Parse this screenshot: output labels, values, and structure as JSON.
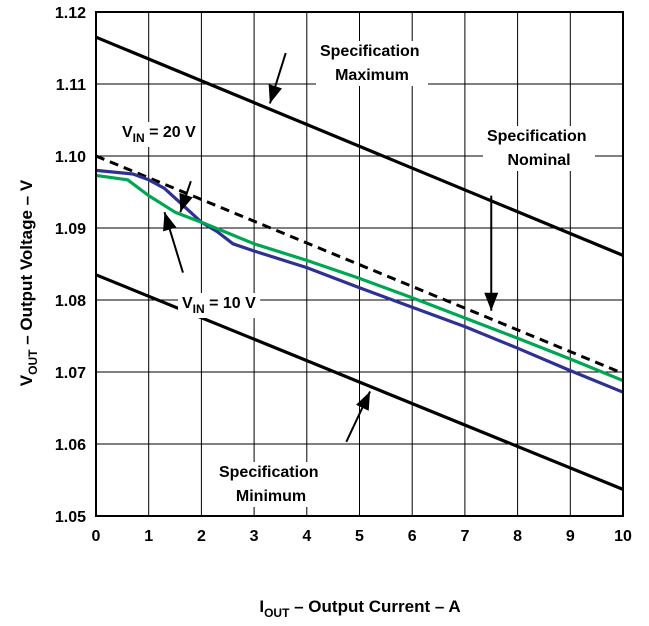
{
  "chart_data": {
    "type": "line",
    "xlabel": {
      "main": "I",
      "sub": "OUT",
      "rest": " – Output Current – A"
    },
    "ylabel": {
      "main": "V",
      "sub": "OUT",
      "rest": " – Output Voltage – V"
    },
    "xlim": [
      0,
      10
    ],
    "ylim": [
      1.05,
      1.12
    ],
    "xticks": [
      "0",
      "1",
      "2",
      "3",
      "4",
      "5",
      "6",
      "7",
      "8",
      "9",
      "10"
    ],
    "yticks": [
      "1.05",
      "1.06",
      "1.07",
      "1.08",
      "1.09",
      "1.10",
      "1.11",
      "1.12"
    ],
    "grid": true,
    "colors": {
      "spec": "#000000",
      "vin20": "#2e3192",
      "vin10": "#00a651"
    },
    "series": [
      {
        "key": "spec_max",
        "style": "solid",
        "color": "#000000",
        "x": [
          0,
          10
        ],
        "y": [
          1.1165,
          1.0862
        ]
      },
      {
        "key": "spec_nom",
        "style": "dashed",
        "color": "#000000",
        "x": [
          0,
          10
        ],
        "y": [
          1.1,
          1.0698
        ]
      },
      {
        "key": "spec_min",
        "style": "solid",
        "color": "#000000",
        "x": [
          0,
          10
        ],
        "y": [
          1.0835,
          1.0537
        ]
      },
      {
        "key": "vin20",
        "style": "solid",
        "color": "#2e3192",
        "x": [
          0,
          0.7,
          1.0,
          1.3,
          1.6,
          2.0,
          2.3,
          2.6,
          3.0,
          4.0,
          5.0,
          6.0,
          7.0,
          8.0,
          9.0,
          10.0
        ],
        "y": [
          1.098,
          1.0975,
          1.0967,
          1.0955,
          1.0935,
          1.0908,
          1.0895,
          1.0878,
          1.0868,
          1.0845,
          1.0817,
          1.079,
          1.0763,
          1.0733,
          1.0702,
          1.0672
        ]
      },
      {
        "key": "vin10",
        "style": "solid",
        "color": "#00a651",
        "x": [
          0,
          0.6,
          1.0,
          1.5,
          2.0,
          2.5,
          3.0,
          4.0,
          5.0,
          6.0,
          7.0,
          8.0,
          9.0,
          10.0
        ],
        "y": [
          1.0973,
          1.0967,
          1.0945,
          1.0922,
          1.0908,
          1.0893,
          1.0878,
          1.0855,
          1.083,
          1.0803,
          1.0775,
          1.0747,
          1.0718,
          1.0688
        ]
      }
    ],
    "annotations": [
      {
        "key": "max",
        "lines": [
          "Specification",
          "Maximum"
        ]
      },
      {
        "key": "nom",
        "lines": [
          "Specification",
          "Nominal"
        ]
      },
      {
        "key": "min",
        "lines": [
          "Specification",
          "Minimum"
        ]
      },
      {
        "key": "vin20",
        "main": "V",
        "sub": "IN",
        "rest": " = 20 V"
      },
      {
        "key": "vin10",
        "main": "V",
        "sub": "IN",
        "rest": " = 10 V"
      }
    ]
  }
}
